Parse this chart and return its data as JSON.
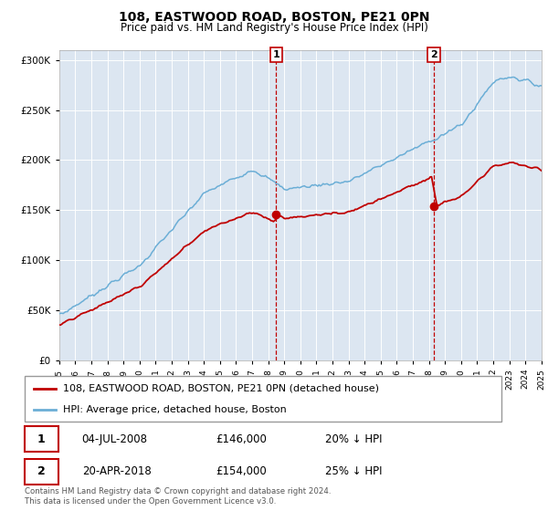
{
  "title": "108, EASTWOOD ROAD, BOSTON, PE21 0PN",
  "subtitle": "Price paid vs. HM Land Registry's House Price Index (HPI)",
  "legend_line1": "108, EASTWOOD ROAD, BOSTON, PE21 0PN (detached house)",
  "legend_line2": "HPI: Average price, detached house, Boston",
  "annotation1_date": "04-JUL-2008",
  "annotation1_price": "£146,000",
  "annotation1_hpi": "20% ↓ HPI",
  "annotation2_date": "20-APR-2018",
  "annotation2_price": "£154,000",
  "annotation2_hpi": "25% ↓ HPI",
  "footer": "Contains HM Land Registry data © Crown copyright and database right 2024.\nThis data is licensed under the Open Government Licence v3.0.",
  "hpi_color": "#6baed6",
  "price_color": "#c00000",
  "annotation_color": "#c00000",
  "bg_color": "#dce6f1",
  "plot_bg": "#ffffff",
  "ylim": [
    0,
    310000
  ],
  "year_start": 1995,
  "year_end": 2025,
  "marker1_year": 2008.5,
  "marker1_price": 146000,
  "marker2_year": 2018.3,
  "marker2_price": 154000
}
